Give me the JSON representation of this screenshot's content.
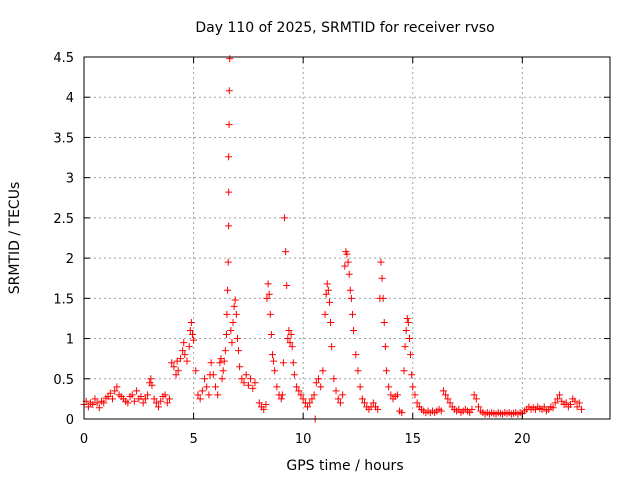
{
  "chart_data": {
    "type": "scatter",
    "title": "Day 110 of 2025, SRMTID for receiver rvso",
    "xlabel": "GPS time / hours",
    "ylabel": "SRMTID / TECUs",
    "xlim": [
      0,
      24
    ],
    "ylim": [
      0,
      4.5
    ],
    "xticks": [
      0,
      5,
      10,
      15,
      20
    ],
    "xtick_labels": [
      "0",
      "5",
      "10",
      "15",
      "20"
    ],
    "yticks": [
      0,
      0.5,
      1,
      1.5,
      2,
      2.5,
      3,
      3.5,
      4,
      4.5
    ],
    "ytick_labels": [
      "0",
      "0.5",
      "1",
      "1.5",
      "2",
      "2.5",
      "3",
      "3.5",
      "4",
      "4.5"
    ],
    "grid": true,
    "marker": "+",
    "series": [
      {
        "name": "SRMTID",
        "color": "#ff0000",
        "points": [
          [
            0.0,
            0.18
          ],
          [
            0.1,
            0.22
          ],
          [
            0.2,
            0.15
          ],
          [
            0.3,
            0.2
          ],
          [
            0.4,
            0.18
          ],
          [
            0.5,
            0.25
          ],
          [
            0.6,
            0.2
          ],
          [
            0.7,
            0.14
          ],
          [
            0.8,
            0.22
          ],
          [
            0.9,
            0.2
          ],
          [
            1.0,
            0.26
          ],
          [
            1.1,
            0.28
          ],
          [
            1.2,
            0.32
          ],
          [
            1.3,
            0.25
          ],
          [
            1.4,
            0.35
          ],
          [
            1.5,
            0.4
          ],
          [
            1.6,
            0.3
          ],
          [
            1.7,
            0.28
          ],
          [
            1.8,
            0.25
          ],
          [
            1.9,
            0.22
          ],
          [
            2.0,
            0.2
          ],
          [
            2.1,
            0.28
          ],
          [
            2.2,
            0.3
          ],
          [
            2.3,
            0.22
          ],
          [
            2.4,
            0.35
          ],
          [
            2.5,
            0.25
          ],
          [
            2.6,
            0.28
          ],
          [
            2.7,
            0.2
          ],
          [
            2.8,
            0.25
          ],
          [
            2.9,
            0.3
          ],
          [
            3.0,
            0.45
          ],
          [
            3.05,
            0.5
          ],
          [
            3.1,
            0.42
          ],
          [
            3.2,
            0.25
          ],
          [
            3.3,
            0.2
          ],
          [
            3.4,
            0.15
          ],
          [
            3.5,
            0.22
          ],
          [
            3.6,
            0.28
          ],
          [
            3.7,
            0.3
          ],
          [
            3.8,
            0.2
          ],
          [
            3.9,
            0.25
          ],
          [
            4.0,
            0.7
          ],
          [
            4.1,
            0.65
          ],
          [
            4.2,
            0.55
          ],
          [
            4.25,
            0.72
          ],
          [
            4.3,
            0.6
          ],
          [
            4.4,
            0.75
          ],
          [
            4.5,
            0.85
          ],
          [
            4.55,
            0.95
          ],
          [
            4.6,
            0.8
          ],
          [
            4.7,
            0.72
          ],
          [
            4.8,
            0.9
          ],
          [
            4.85,
            1.1
          ],
          [
            4.9,
            1.2
          ],
          [
            4.95,
            1.05
          ],
          [
            5.0,
            0.98
          ],
          [
            5.1,
            0.6
          ],
          [
            5.2,
            0.3
          ],
          [
            5.3,
            0.25
          ],
          [
            5.4,
            0.35
          ],
          [
            5.5,
            0.5
          ],
          [
            5.6,
            0.4
          ],
          [
            5.7,
            0.3
          ],
          [
            5.75,
            0.55
          ],
          [
            5.8,
            0.7
          ],
          [
            5.9,
            0.55
          ],
          [
            6.0,
            0.4
          ],
          [
            6.1,
            0.3
          ],
          [
            6.2,
            0.7
          ],
          [
            6.25,
            0.75
          ],
          [
            6.3,
            0.5
          ],
          [
            6.35,
            0.6
          ],
          [
            6.4,
            0.72
          ],
          [
            6.45,
            0.85
          ],
          [
            6.5,
            1.05
          ],
          [
            6.52,
            1.3
          ],
          [
            6.55,
            1.6
          ],
          [
            6.58,
            1.95
          ],
          [
            6.6,
            2.4
          ],
          [
            6.6,
            2.82
          ],
          [
            6.6,
            3.26
          ],
          [
            6.62,
            3.66
          ],
          [
            6.63,
            4.08
          ],
          [
            6.65,
            4.48
          ],
          [
            6.7,
            1.1
          ],
          [
            6.75,
            0.95
          ],
          [
            6.8,
            1.2
          ],
          [
            6.85,
            1.4
          ],
          [
            6.9,
            1.48
          ],
          [
            6.95,
            1.3
          ],
          [
            7.0,
            1.0
          ],
          [
            7.05,
            0.85
          ],
          [
            7.1,
            0.65
          ],
          [
            7.2,
            0.5
          ],
          [
            7.3,
            0.45
          ],
          [
            7.4,
            0.55
          ],
          [
            7.5,
            0.42
          ],
          [
            7.6,
            0.5
          ],
          [
            7.7,
            0.38
          ],
          [
            7.8,
            0.45
          ],
          [
            8.0,
            0.2
          ],
          [
            8.1,
            0.15
          ],
          [
            8.2,
            0.12
          ],
          [
            8.3,
            0.18
          ],
          [
            8.35,
            1.5
          ],
          [
            8.4,
            1.68
          ],
          [
            8.45,
            1.55
          ],
          [
            8.5,
            1.3
          ],
          [
            8.55,
            1.05
          ],
          [
            8.6,
            0.8
          ],
          [
            8.65,
            0.72
          ],
          [
            8.7,
            0.6
          ],
          [
            8.8,
            0.4
          ],
          [
            8.9,
            0.3
          ],
          [
            9.0,
            0.25
          ],
          [
            9.05,
            0.3
          ],
          [
            9.1,
            0.7
          ],
          [
            9.15,
            2.5
          ],
          [
            9.2,
            2.08
          ],
          [
            9.25,
            1.66
          ],
          [
            9.3,
            1.0
          ],
          [
            9.35,
            1.1
          ],
          [
            9.4,
            0.95
          ],
          [
            9.45,
            1.05
          ],
          [
            9.5,
            0.9
          ],
          [
            9.55,
            0.7
          ],
          [
            9.6,
            0.55
          ],
          [
            9.7,
            0.4
          ],
          [
            9.8,
            0.35
          ],
          [
            9.9,
            0.3
          ],
          [
            10.0,
            0.25
          ],
          [
            10.1,
            0.2
          ],
          [
            10.2,
            0.15
          ],
          [
            10.3,
            0.2
          ],
          [
            10.4,
            0.25
          ],
          [
            10.5,
            0.3
          ],
          [
            10.55,
            0.0
          ],
          [
            10.6,
            0.45
          ],
          [
            10.7,
            0.5
          ],
          [
            10.8,
            0.4
          ],
          [
            10.9,
            0.6
          ],
          [
            11.0,
            1.3
          ],
          [
            11.05,
            1.55
          ],
          [
            11.1,
            1.68
          ],
          [
            11.15,
            1.6
          ],
          [
            11.2,
            1.45
          ],
          [
            11.25,
            1.2
          ],
          [
            11.3,
            0.9
          ],
          [
            11.4,
            0.5
          ],
          [
            11.5,
            0.35
          ],
          [
            11.6,
            0.25
          ],
          [
            11.7,
            0.2
          ],
          [
            11.8,
            0.3
          ],
          [
            11.9,
            1.9
          ],
          [
            11.95,
            2.08
          ],
          [
            12.0,
            2.05
          ],
          [
            12.05,
            1.95
          ],
          [
            12.1,
            1.8
          ],
          [
            12.15,
            1.6
          ],
          [
            12.2,
            1.5
          ],
          [
            12.25,
            1.3
          ],
          [
            12.3,
            1.1
          ],
          [
            12.4,
            0.8
          ],
          [
            12.5,
            0.6
          ],
          [
            12.6,
            0.4
          ],
          [
            12.7,
            0.25
          ],
          [
            12.8,
            0.2
          ],
          [
            12.9,
            0.15
          ],
          [
            13.0,
            0.12
          ],
          [
            13.1,
            0.15
          ],
          [
            13.2,
            0.2
          ],
          [
            13.3,
            0.15
          ],
          [
            13.4,
            0.12
          ],
          [
            13.5,
            1.5
          ],
          [
            13.55,
            1.95
          ],
          [
            13.6,
            1.75
          ],
          [
            13.65,
            1.5
          ],
          [
            13.7,
            1.2
          ],
          [
            13.75,
            0.9
          ],
          [
            13.8,
            0.6
          ],
          [
            13.9,
            0.4
          ],
          [
            14.0,
            0.3
          ],
          [
            14.1,
            0.25
          ],
          [
            14.2,
            0.28
          ],
          [
            14.3,
            0.3
          ],
          [
            14.4,
            0.1
          ],
          [
            14.5,
            0.08
          ],
          [
            14.6,
            0.6
          ],
          [
            14.65,
            0.9
          ],
          [
            14.7,
            1.1
          ],
          [
            14.75,
            1.25
          ],
          [
            14.8,
            1.2
          ],
          [
            14.85,
            1.0
          ],
          [
            14.9,
            0.8
          ],
          [
            14.95,
            0.55
          ],
          [
            15.0,
            0.4
          ],
          [
            15.1,
            0.3
          ],
          [
            15.2,
            0.2
          ],
          [
            15.3,
            0.15
          ],
          [
            15.4,
            0.12
          ],
          [
            15.5,
            0.1
          ],
          [
            15.6,
            0.08
          ],
          [
            15.7,
            0.1
          ],
          [
            15.8,
            0.08
          ],
          [
            15.9,
            0.1
          ],
          [
            16.0,
            0.08
          ],
          [
            16.1,
            0.1
          ],
          [
            16.2,
            0.12
          ],
          [
            16.3,
            0.1
          ],
          [
            16.4,
            0.35
          ],
          [
            16.5,
            0.3
          ],
          [
            16.6,
            0.25
          ],
          [
            16.7,
            0.2
          ],
          [
            16.8,
            0.15
          ],
          [
            16.9,
            0.12
          ],
          [
            17.0,
            0.1
          ],
          [
            17.1,
            0.12
          ],
          [
            17.2,
            0.08
          ],
          [
            17.3,
            0.1
          ],
          [
            17.4,
            0.12
          ],
          [
            17.5,
            0.1
          ],
          [
            17.6,
            0.08
          ],
          [
            17.7,
            0.12
          ],
          [
            17.8,
            0.3
          ],
          [
            17.9,
            0.25
          ],
          [
            18.0,
            0.15
          ],
          [
            18.1,
            0.1
          ],
          [
            18.2,
            0.08
          ],
          [
            18.3,
            0.06
          ],
          [
            18.4,
            0.08
          ],
          [
            18.5,
            0.06
          ],
          [
            18.6,
            0.08
          ],
          [
            18.7,
            0.07
          ],
          [
            18.8,
            0.06
          ],
          [
            18.9,
            0.08
          ],
          [
            19.0,
            0.07
          ],
          [
            19.1,
            0.06
          ],
          [
            19.2,
            0.08
          ],
          [
            19.3,
            0.07
          ],
          [
            19.4,
            0.08
          ],
          [
            19.5,
            0.06
          ],
          [
            19.6,
            0.07
          ],
          [
            19.7,
            0.08
          ],
          [
            19.8,
            0.06
          ],
          [
            19.9,
            0.08
          ],
          [
            20.0,
            0.07
          ],
          [
            20.1,
            0.1
          ],
          [
            20.2,
            0.12
          ],
          [
            20.3,
            0.15
          ],
          [
            20.4,
            0.12
          ],
          [
            20.5,
            0.14
          ],
          [
            20.6,
            0.12
          ],
          [
            20.7,
            0.15
          ],
          [
            20.8,
            0.13
          ],
          [
            20.9,
            0.12
          ],
          [
            21.0,
            0.15
          ],
          [
            21.1,
            0.1
          ],
          [
            21.2,
            0.12
          ],
          [
            21.3,
            0.15
          ],
          [
            21.4,
            0.14
          ],
          [
            21.5,
            0.2
          ],
          [
            21.6,
            0.25
          ],
          [
            21.7,
            0.3
          ],
          [
            21.8,
            0.22
          ],
          [
            21.9,
            0.18
          ],
          [
            22.0,
            0.2
          ],
          [
            22.1,
            0.15
          ],
          [
            22.2,
            0.18
          ],
          [
            22.3,
            0.25
          ],
          [
            22.4,
            0.22
          ],
          [
            22.5,
            0.15
          ],
          [
            22.6,
            0.2
          ],
          [
            22.7,
            0.12
          ]
        ]
      }
    ]
  }
}
